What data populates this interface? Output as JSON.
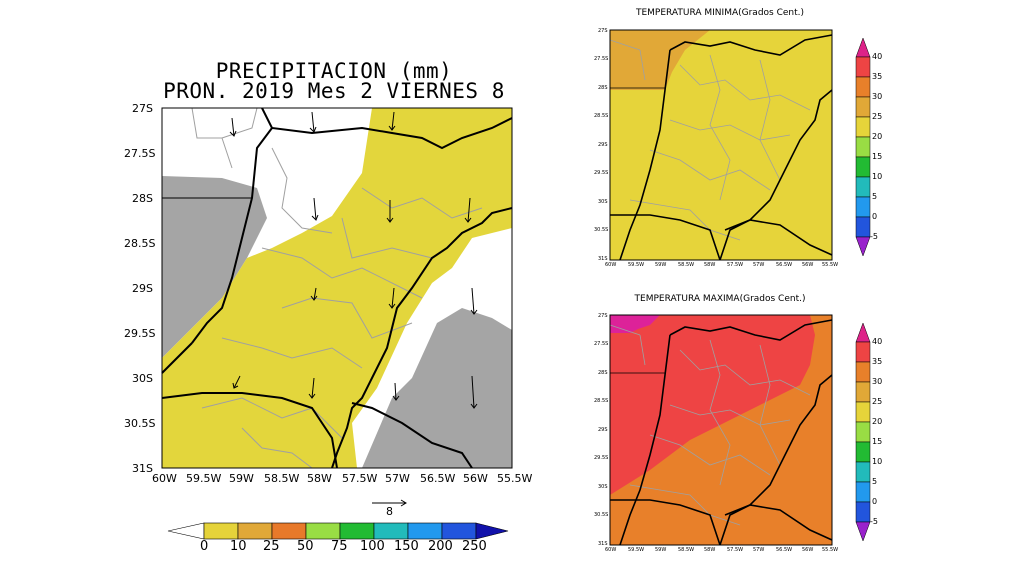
{
  "precip": {
    "title_line1": "PRECIPITACION (mm)",
    "title_line2": "PRON. 2019 Mes 2 VIERNES 8",
    "lat_labels": [
      "27S",
      "27.5S",
      "28S",
      "28.5S",
      "29S",
      "29.5S",
      "30S",
      "30.5S",
      "31S"
    ],
    "lon_labels": [
      "60W",
      "59.5W",
      "59W",
      "58.5W",
      "58W",
      "57.5W",
      "57W",
      "56.5W",
      "56W",
      "55.5W"
    ],
    "vector_ref": "8",
    "colorbar": {
      "labels": [
        "0",
        "10",
        "25",
        "50",
        "75",
        "100",
        "150",
        "200",
        "250"
      ],
      "colors": [
        "#ffffff",
        "#e5d33a",
        "#e0a838",
        "#e8792a",
        "#99dd44",
        "#22bb33",
        "#22bbbb",
        "#2299ee",
        "#2255dd",
        "#1111aa"
      ]
    },
    "colors": {
      "rain_light": "#e3d63c",
      "no_rain": "#ffffff",
      "gray": "#a5a5a5"
    }
  },
  "tmin": {
    "title": "TEMPERATURA MINIMA(Grados Cent.)",
    "lat_labels": [
      "27S",
      "27.5S",
      "28S",
      "28.5S",
      "29S",
      "29.5S",
      "30S",
      "30.5S",
      "31S"
    ],
    "lon_labels": [
      "60W",
      "59.5W",
      "59W",
      "58.5W",
      "58W",
      "57.5W",
      "57W",
      "56.5W",
      "56W",
      "55.5W"
    ],
    "colors": {
      "base": "#e6d43a",
      "warm": "#e1a837"
    }
  },
  "tmax": {
    "title": "TEMPERATURA MAXIMA(Grados Cent.)",
    "lat_labels": [
      "27S",
      "27.5S",
      "28S",
      "28.5S",
      "29S",
      "29.5S",
      "30S",
      "30.5S",
      "31S"
    ],
    "lon_labels": [
      "60W",
      "59.5W",
      "59W",
      "58.5W",
      "58W",
      "57.5W",
      "57W",
      "56.5W",
      "56W",
      "55.5W"
    ],
    "colors": {
      "hot": "#ee4444",
      "warm": "#e8802a",
      "extreme": "#dd2299"
    }
  },
  "temp_colorbar": {
    "labels": [
      "40",
      "35",
      "30",
      "25",
      "20",
      "15",
      "10",
      "5",
      "0",
      "-5"
    ],
    "colors": [
      "#dd2288",
      "#ee4444",
      "#e8802a",
      "#e1a837",
      "#e6d43a",
      "#99dd44",
      "#22bb33",
      "#22bbbb",
      "#2299ee",
      "#2255dd",
      "#9922cc"
    ]
  }
}
